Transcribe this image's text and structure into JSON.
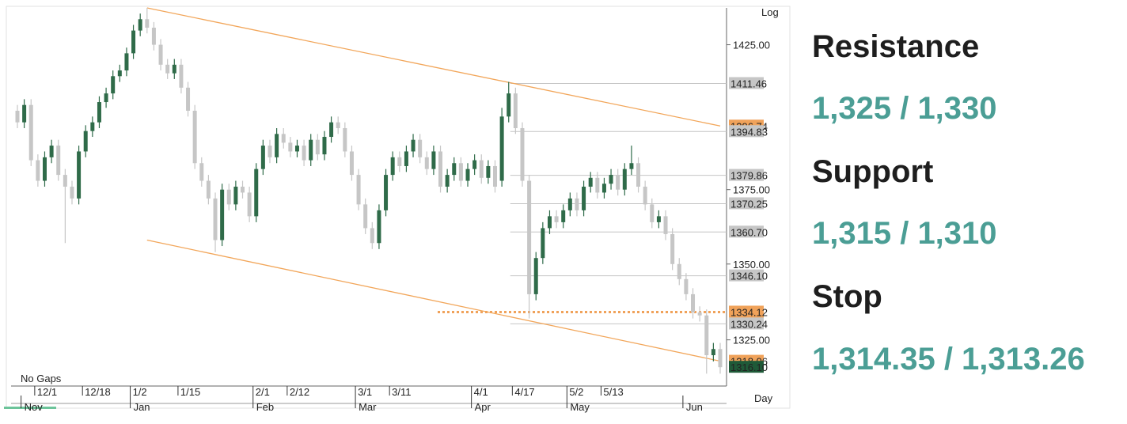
{
  "chart_data": {
    "type": "candlestick",
    "log": true,
    "scale_label": "Log",
    "period": "Day",
    "note": "No Gaps",
    "ylim": [
      1310,
      1438
    ],
    "yticks": [
      {
        "value": 1325,
        "label": "1325.00"
      },
      {
        "value": 1350,
        "label": "1350.00"
      },
      {
        "value": 1375,
        "label": "1375.00"
      },
      {
        "value": 1425,
        "label": "1425.00"
      }
    ],
    "xticks": [
      {
        "value": 3,
        "label": "12/1"
      },
      {
        "value": 10,
        "label": "12/18"
      },
      {
        "value": 17,
        "label": "1/2"
      },
      {
        "value": 24,
        "label": "1/15"
      },
      {
        "value": 35,
        "label": "2/1"
      },
      {
        "value": 40,
        "label": "2/12"
      },
      {
        "value": 50,
        "label": "3/1"
      },
      {
        "value": 55,
        "label": "3/11"
      },
      {
        "value": 67,
        "label": "4/1"
      },
      {
        "value": 73,
        "label": "4/17"
      },
      {
        "value": 81,
        "label": "5/2"
      },
      {
        "value": 86,
        "label": "5/13"
      }
    ],
    "month_ticks": [
      {
        "value": 1,
        "label": "Nov"
      },
      {
        "value": 17,
        "label": "Jan"
      },
      {
        "value": 35,
        "label": "Feb"
      },
      {
        "value": 50,
        "label": "Mar"
      },
      {
        "value": 67,
        "label": "Apr"
      },
      {
        "value": 81,
        "label": "May"
      },
      {
        "value": 98,
        "label": "Jun"
      }
    ],
    "up_color": "#2f6b49",
    "down_color": "#c6c6c6",
    "open": [
      1402,
      1398,
      1404,
      1385,
      1378,
      1386,
      1390,
      1380,
      1376,
      1372,
      1388,
      1395,
      1398,
      1405,
      1408,
      1414,
      1416,
      1422,
      1430,
      1434,
      1431,
      1425,
      1418,
      1415,
      1418,
      1410,
      1402,
      1384,
      1378,
      1372,
      1358,
      1375,
      1370,
      1376,
      1374,
      1366,
      1382,
      1390,
      1386,
      1394,
      1391,
      1388,
      1390,
      1385,
      1392,
      1387,
      1393,
      1398,
      1396,
      1388,
      1380,
      1370,
      1362,
      1357,
      1368,
      1380,
      1386,
      1383,
      1388,
      1392,
      1386,
      1382,
      1388,
      1376,
      1380,
      1384,
      1378,
      1382,
      1385,
      1379,
      1383,
      1378,
      1400,
      1408,
      1396,
      1378,
      1340,
      1352,
      1362,
      1366,
      1364,
      1368,
      1372,
      1368,
      1376,
      1379,
      1374,
      1377,
      1380,
      1375,
      1382,
      1384,
      1376,
      1370,
      1364,
      1366,
      1360,
      1350,
      1345,
      1340,
      1334,
      1333,
      1320,
      1322
    ],
    "high": [
      1404,
      1406,
      1406,
      1387,
      1388,
      1392,
      1392,
      1382,
      1378,
      1390,
      1397,
      1400,
      1407,
      1410,
      1416,
      1418,
      1424,
      1432,
      1436,
      1438,
      1433,
      1427,
      1420,
      1420,
      1420,
      1412,
      1404,
      1386,
      1380,
      1374,
      1377,
      1377,
      1378,
      1378,
      1376,
      1384,
      1392,
      1392,
      1396,
      1396,
      1393,
      1392,
      1392,
      1394,
      1394,
      1395,
      1400,
      1400,
      1398,
      1390,
      1382,
      1372,
      1364,
      1370,
      1382,
      1388,
      1388,
      1390,
      1394,
      1394,
      1388,
      1390,
      1390,
      1382,
      1386,
      1386,
      1384,
      1387,
      1387,
      1385,
      1385,
      1403,
      1412,
      1410,
      1398,
      1380,
      1354,
      1364,
      1368,
      1368,
      1370,
      1374,
      1374,
      1378,
      1381,
      1381,
      1379,
      1382,
      1382,
      1384,
      1390,
      1386,
      1378,
      1372,
      1368,
      1368,
      1362,
      1352,
      1347,
      1342,
      1336,
      1335,
      1324,
      1324
    ],
    "low": [
      1396,
      1396,
      1383,
      1376,
      1376,
      1384,
      1378,
      1357,
      1370,
      1370,
      1386,
      1393,
      1396,
      1403,
      1406,
      1412,
      1414,
      1420,
      1428,
      1429,
      1423,
      1416,
      1413,
      1413,
      1408,
      1400,
      1382,
      1376,
      1370,
      1354,
      1356,
      1368,
      1368,
      1372,
      1364,
      1364,
      1380,
      1384,
      1384,
      1389,
      1386,
      1386,
      1383,
      1383,
      1385,
      1385,
      1391,
      1394,
      1386,
      1378,
      1368,
      1360,
      1355,
      1355,
      1366,
      1378,
      1381,
      1381,
      1386,
      1384,
      1380,
      1380,
      1374,
      1374,
      1378,
      1376,
      1376,
      1380,
      1377,
      1377,
      1374,
      1376,
      1398,
      1394,
      1376,
      1332,
      1338,
      1350,
      1360,
      1362,
      1362,
      1366,
      1366,
      1366,
      1374,
      1372,
      1372,
      1375,
      1373,
      1373,
      1380,
      1374,
      1368,
      1362,
      1362,
      1358,
      1348,
      1343,
      1338,
      1332,
      1331,
      1314,
      1318,
      1314
    ],
    "close": [
      1398,
      1404,
      1385,
      1378,
      1386,
      1390,
      1380,
      1376,
      1372,
      1388,
      1395,
      1398,
      1405,
      1408,
      1414,
      1416,
      1422,
      1430,
      1434,
      1431,
      1425,
      1418,
      1415,
      1418,
      1410,
      1402,
      1384,
      1378,
      1372,
      1358,
      1375,
      1370,
      1376,
      1374,
      1366,
      1382,
      1390,
      1386,
      1394,
      1391,
      1388,
      1390,
      1385,
      1392,
      1387,
      1393,
      1398,
      1396,
      1388,
      1380,
      1370,
      1362,
      1357,
      1368,
      1380,
      1386,
      1383,
      1388,
      1392,
      1386,
      1382,
      1388,
      1376,
      1380,
      1384,
      1378,
      1382,
      1385,
      1379,
      1383,
      1376,
      1400,
      1408,
      1396,
      1378,
      1340,
      1352,
      1362,
      1366,
      1364,
      1368,
      1372,
      1368,
      1376,
      1379,
      1374,
      1377,
      1380,
      1375,
      1382,
      1384,
      1376,
      1370,
      1364,
      1366,
      1360,
      1350,
      1345,
      1340,
      1334,
      1333,
      1320,
      1322,
      1316.1
    ],
    "trendlines": [
      {
        "color": "#f2a65a",
        "points": [
          [
            19,
            1438
          ],
          [
            103,
            1396.74
          ]
        ]
      },
      {
        "color": "#f2a65a",
        "points": [
          [
            19,
            1358
          ],
          [
            103,
            1318.06
          ]
        ]
      }
    ],
    "levels": [
      {
        "value": 1411.46,
        "color": "#c6c6c6",
        "line": "solid"
      },
      {
        "value": 1396.74,
        "color": "#f0a25a",
        "line": "none"
      },
      {
        "value": 1394.83,
        "color": "#c6c6c6",
        "line": "solid"
      },
      {
        "value": 1379.86,
        "color": "#c6c6c6",
        "line": "solid"
      },
      {
        "value": 1370.25,
        "color": "#c6c6c6",
        "line": "solid"
      },
      {
        "value": 1360.7,
        "label": "1360.70",
        "color": "#c6c6c6",
        "line": "solid"
      },
      {
        "value": 1346.1,
        "label": "1346.10",
        "color": "#c6c6c6",
        "line": "solid"
      },
      {
        "value": 1334.12,
        "color": "#f0a25a",
        "line": "dotted"
      },
      {
        "value": 1330.24,
        "color": "#c6c6c6",
        "line": "solid"
      },
      {
        "value": 1318.06,
        "color": "#f0a25a",
        "line": "none"
      },
      {
        "value": 1316.1,
        "label": "1316.10",
        "color": "#1f5a38",
        "line": "none"
      }
    ]
  },
  "panel": {
    "items": [
      {
        "heading": "Resistance",
        "value": "1,325 / 1,330"
      },
      {
        "heading": "Support",
        "value": "1,315 / 1,310"
      },
      {
        "heading": "Stop",
        "value": "1,314.35 / 1,313.26"
      }
    ]
  }
}
